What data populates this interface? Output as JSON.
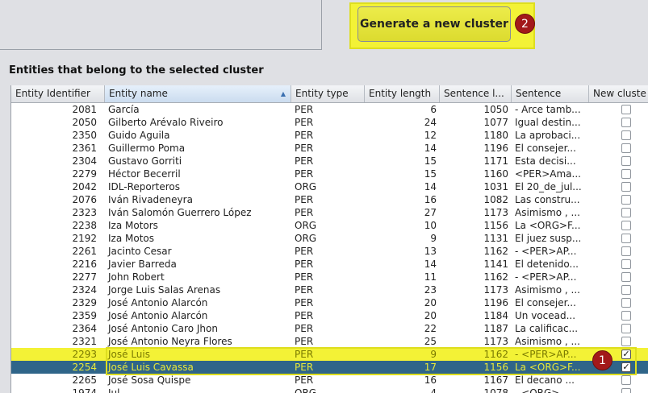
{
  "toolbar": {
    "generate_label": "Generate a new cluster",
    "step2_badge": "2"
  },
  "section": {
    "title": "Entities that belong to the selected cluster"
  },
  "table": {
    "columns": [
      "Entity Identifier",
      "Entity name",
      "Entity type",
      "Entity length",
      "Sentence l...",
      "Sentence",
      "New cluste"
    ],
    "sorted_column_index": 1,
    "rows": [
      {
        "id": "2081",
        "name": "García",
        "type": "PER",
        "length": "6",
        "sl": "1050",
        "sentence": "- Arce tamb...",
        "checked": false
      },
      {
        "id": "2050",
        "name": "Gilberto Arévalo Riveiro",
        "type": "PER",
        "length": "24",
        "sl": "1077",
        "sentence": "Igual destin...",
        "checked": false
      },
      {
        "id": "2350",
        "name": "Guido Aguila",
        "type": "PER",
        "length": "12",
        "sl": "1180",
        "sentence": "La aprobaci...",
        "checked": false
      },
      {
        "id": "2361",
        "name": "Guillermo Poma",
        "type": "PER",
        "length": "14",
        "sl": "1196",
        "sentence": "El consejer...",
        "checked": false
      },
      {
        "id": "2304",
        "name": "Gustavo Gorriti",
        "type": "PER",
        "length": "15",
        "sl": "1171",
        "sentence": "Esta decisi...",
        "checked": false
      },
      {
        "id": "2279",
        "name": "Héctor Becerril",
        "type": "PER",
        "length": "15",
        "sl": "1160",
        "sentence": "<PER>Ama...",
        "checked": false
      },
      {
        "id": "2042",
        "name": "IDL-Reporteros",
        "type": "ORG",
        "length": "14",
        "sl": "1031",
        "sentence": "El 20_de_jul...",
        "checked": false
      },
      {
        "id": "2076",
        "name": "Iván Rivadeneyra",
        "type": "PER",
        "length": "16",
        "sl": "1082",
        "sentence": "Las constru...",
        "checked": false
      },
      {
        "id": "2323",
        "name": "Iván Salomón Guerrero López",
        "type": "PER",
        "length": "27",
        "sl": "1173",
        "sentence": "Asimismo , ...",
        "checked": false
      },
      {
        "id": "2238",
        "name": "Iza Motors",
        "type": "ORG",
        "length": "10",
        "sl": "1156",
        "sentence": "La <ORG>F...",
        "checked": false
      },
      {
        "id": "2192",
        "name": "Iza Motos",
        "type": "ORG",
        "length": "9",
        "sl": "1131",
        "sentence": "El juez susp...",
        "checked": false
      },
      {
        "id": "2261",
        "name": "Jacinto Cesar",
        "type": "PER",
        "length": "13",
        "sl": "1162",
        "sentence": "- <PER>AP...",
        "checked": false
      },
      {
        "id": "2216",
        "name": "Javier Barreda",
        "type": "PER",
        "length": "14",
        "sl": "1141",
        "sentence": "El detenido...",
        "checked": false
      },
      {
        "id": "2277",
        "name": "John Robert",
        "type": "PER",
        "length": "11",
        "sl": "1162",
        "sentence": "- <PER>AP...",
        "checked": false
      },
      {
        "id": "2324",
        "name": "Jorge Luis Salas Arenas",
        "type": "PER",
        "length": "23",
        "sl": "1173",
        "sentence": "Asimismo , ...",
        "checked": false
      },
      {
        "id": "2329",
        "name": "José Antonio Alarcón",
        "type": "PER",
        "length": "20",
        "sl": "1196",
        "sentence": "El consejer...",
        "checked": false
      },
      {
        "id": "2359",
        "name": "José Antonio Alarcón",
        "type": "PER",
        "length": "20",
        "sl": "1184",
        "sentence": "Un vocead...",
        "checked": false
      },
      {
        "id": "2364",
        "name": "José Antonio Caro Jhon",
        "type": "PER",
        "length": "22",
        "sl": "1187",
        "sentence": "La calificac...",
        "checked": false
      },
      {
        "id": "2321",
        "name": "José Antonio Neyra Flores",
        "type": "PER",
        "length": "25",
        "sl": "1173",
        "sentence": "Asimismo , ...",
        "checked": false
      },
      {
        "id": "2293",
        "name": "José Luis",
        "type": "PER",
        "length": "9",
        "sl": "1162",
        "sentence": "- <PER>AP...",
        "checked": true,
        "state": "hl"
      },
      {
        "id": "2254",
        "name": "José Luis Cavassa",
        "type": "PER",
        "length": "17",
        "sl": "1156",
        "sentence": "La <ORG>F...",
        "checked": true,
        "state": "sel"
      },
      {
        "id": "2265",
        "name": "José Sosa Quispe",
        "type": "PER",
        "length": "16",
        "sl": "1167",
        "sentence": "El decano ...",
        "checked": false
      },
      {
        "id": "1974",
        "name": "Jul...",
        "type": "ORG",
        "length": "4",
        "sl": "1078",
        "sentence": "- <ORG> ...",
        "checked": false
      }
    ]
  },
  "annotations": {
    "step1_badge": "1"
  },
  "colors": {
    "highlight": "#f3f236",
    "selected_row": "#2f6589",
    "badge": "#a3191a"
  }
}
